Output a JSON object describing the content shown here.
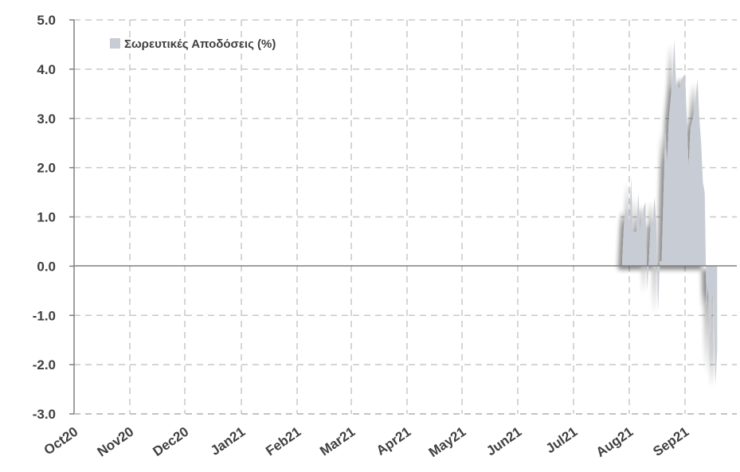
{
  "chart_data": {
    "type": "area",
    "series": [
      {
        "name": "Σωρευτικές Αποδόσεις (%)",
        "color": "#c8ccd4",
        "points": [
          [
            "2021-07-28",
            0.1
          ],
          [
            "2021-07-29",
            0.8
          ],
          [
            "2021-07-30",
            1.2
          ],
          [
            "2021-08-01",
            0.9
          ],
          [
            "2021-08-02",
            1.8
          ],
          [
            "2021-08-03",
            0.7
          ],
          [
            "2021-08-05",
            0.7
          ],
          [
            "2021-08-06",
            1.5
          ],
          [
            "2021-08-07",
            0.7
          ],
          [
            "2021-08-09",
            1.2
          ],
          [
            "2021-08-10",
            1.3
          ],
          [
            "2021-08-11",
            -0.5
          ],
          [
            "2021-08-13",
            0.9
          ],
          [
            "2021-08-14",
            0.9
          ],
          [
            "2021-08-15",
            1.4
          ],
          [
            "2021-08-16",
            0.9
          ],
          [
            "2021-08-17",
            -0.9
          ],
          [
            "2021-08-18",
            0.1
          ],
          [
            "2021-08-19",
            0.1
          ],
          [
            "2021-08-21",
            2.8
          ],
          [
            "2021-08-22",
            2.1
          ],
          [
            "2021-08-23",
            3.0
          ],
          [
            "2021-08-25",
            3.8
          ],
          [
            "2021-08-26",
            4.6
          ],
          [
            "2021-08-27",
            3.7
          ],
          [
            "2021-08-29",
            3.6
          ],
          [
            "2021-08-30",
            3.8
          ],
          [
            "2021-09-01",
            3.9
          ],
          [
            "2021-09-03",
            2.0
          ],
          [
            "2021-09-04",
            2.8
          ],
          [
            "2021-09-06",
            3.1
          ],
          [
            "2021-09-08",
            3.8
          ],
          [
            "2021-09-09",
            3.0
          ],
          [
            "2021-09-10",
            2.5
          ],
          [
            "2021-09-11",
            1.7
          ],
          [
            "2021-09-12",
            1.5
          ],
          [
            "2021-09-13",
            -0.8
          ],
          [
            "2021-09-14",
            -0.4
          ],
          [
            "2021-09-15",
            -2.1
          ],
          [
            "2021-09-16",
            -0.6
          ],
          [
            "2021-09-17",
            -0.6
          ],
          [
            "2021-09-18",
            -2.4
          ],
          [
            "2021-09-19",
            -1.7
          ]
        ]
      }
    ],
    "x_tick_labels": [
      "Oct20",
      "Nov20",
      "Dec20",
      "Jan21",
      "Feb21",
      "Mar21",
      "Apr21",
      "May21",
      "Jun21",
      "Jul21",
      "Aug21",
      "Sep21"
    ],
    "x_tick_dates": [
      "2020-10-01",
      "2020-11-01",
      "2020-12-01",
      "2021-01-01",
      "2021-02-01",
      "2021-03-01",
      "2021-04-01",
      "2021-05-01",
      "2021-06-01",
      "2021-07-01",
      "2021-08-01",
      "2021-09-01"
    ],
    "y_tick_labels": [
      "5.0",
      "4.0",
      "3.0",
      "2.0",
      "1.0",
      "0.0",
      "-1.0",
      "-2.0",
      "-3.0"
    ],
    "ylim": [
      -3.0,
      5.0
    ],
    "xlim": [
      "2020-10-01",
      "2021-09-30"
    ],
    "grid": true,
    "legend_position": "top-left",
    "title": "",
    "xlabel": "",
    "ylabel": ""
  }
}
